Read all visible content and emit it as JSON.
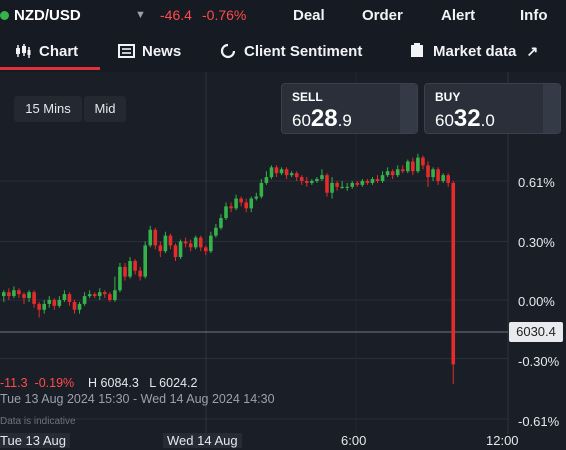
{
  "header": {
    "symbol": "NZD/USD",
    "change": "-46.4",
    "change_pct": "-0.76%",
    "nav": [
      "Deal",
      "Order",
      "Alert",
      "Info"
    ]
  },
  "tabs": [
    {
      "label": "Chart",
      "icon": "candlestick-icon",
      "active": true
    },
    {
      "label": "News",
      "icon": "news-icon"
    },
    {
      "label": "Client Sentiment",
      "icon": "sentiment-ring-icon"
    },
    {
      "label": "Market data",
      "icon": "external-link-icon"
    }
  ],
  "controls": {
    "interval": "15 Mins",
    "price_type": "Mid"
  },
  "sell": {
    "label": "SELL",
    "prefix": "60",
    "big": "28",
    "suffix": ".9"
  },
  "buy": {
    "label": "BUY",
    "prefix": "60",
    "big": "32",
    "suffix": ".0"
  },
  "current_price_label": "6030.4",
  "colors": {
    "up": "#36b24a",
    "down": "#e52b2b",
    "accent": "#e0313a"
  },
  "chart_data": {
    "type": "candlestick",
    "yaxis_ticks": [
      "0.61%",
      "0.30%",
      "0.00%",
      "-0.30%",
      "-0.61%"
    ],
    "xaxis_ticks": [
      "Tue 13 Aug",
      "Wed 14 Aug",
      "6:00",
      "12:00"
    ],
    "stats": {
      "change": "-11.3",
      "change_pct": "-0.19%",
      "high": "H 6084.3",
      "low": "L 6024.2"
    },
    "range_label": "Tue 13 Aug 2024 15:30 - Wed 14 Aug 2024 14:30",
    "note": "Data is indicative",
    "candles": [
      [
        0.02,
        0.04,
        -0.01,
        0.05
      ],
      [
        0.04,
        0.02,
        0.0,
        0.06
      ],
      [
        0.02,
        0.05,
        0.01,
        0.07
      ],
      [
        0.05,
        0.03,
        0.01,
        0.06
      ],
      [
        0.03,
        0.01,
        -0.02,
        0.04
      ],
      [
        0.01,
        0.04,
        -0.01,
        0.05
      ],
      [
        0.04,
        -0.02,
        -0.04,
        0.05
      ],
      [
        -0.02,
        -0.05,
        -0.09,
        -0.01
      ],
      [
        -0.05,
        -0.02,
        -0.07,
        0.0
      ],
      [
        -0.02,
        0.0,
        -0.04,
        0.02
      ],
      [
        0.0,
        -0.03,
        -0.05,
        0.01
      ],
      [
        -0.03,
        0.0,
        -0.04,
        0.02
      ],
      [
        0.0,
        0.03,
        -0.01,
        0.05
      ],
      [
        0.03,
        -0.01,
        -0.03,
        0.04
      ],
      [
        -0.01,
        -0.05,
        -0.07,
        0.0
      ],
      [
        -0.05,
        -0.02,
        -0.07,
        -0.01
      ],
      [
        -0.02,
        0.02,
        -0.03,
        0.04
      ],
      [
        0.02,
        0.03,
        0.01,
        0.05
      ],
      [
        0.03,
        0.02,
        0.01,
        0.04
      ],
      [
        0.02,
        0.04,
        0.0,
        0.06
      ],
      [
        0.04,
        0.03,
        0.01,
        0.05
      ],
      [
        0.03,
        0.0,
        -0.01,
        0.04
      ],
      [
        0.0,
        0.05,
        -0.01,
        0.12
      ],
      [
        0.05,
        0.17,
        0.04,
        0.19
      ],
      [
        0.17,
        0.12,
        0.1,
        0.19
      ],
      [
        0.12,
        0.2,
        0.11,
        0.22
      ],
      [
        0.2,
        0.15,
        0.13,
        0.21
      ],
      [
        0.15,
        0.12,
        0.1,
        0.17
      ],
      [
        0.12,
        0.28,
        0.11,
        0.3
      ],
      [
        0.28,
        0.36,
        0.27,
        0.38
      ],
      [
        0.36,
        0.28,
        0.26,
        0.37
      ],
      [
        0.28,
        0.25,
        0.22,
        0.3
      ],
      [
        0.25,
        0.33,
        0.24,
        0.35
      ],
      [
        0.33,
        0.28,
        0.26,
        0.34
      ],
      [
        0.28,
        0.22,
        0.2,
        0.29
      ],
      [
        0.22,
        0.3,
        0.21,
        0.31
      ],
      [
        0.3,
        0.29,
        0.27,
        0.32
      ],
      [
        0.29,
        0.27,
        0.25,
        0.31
      ],
      [
        0.27,
        0.32,
        0.26,
        0.33
      ],
      [
        0.32,
        0.27,
        0.25,
        0.33
      ],
      [
        0.27,
        0.25,
        0.23,
        0.28
      ],
      [
        0.25,
        0.33,
        0.24,
        0.35
      ],
      [
        0.33,
        0.37,
        0.32,
        0.39
      ],
      [
        0.37,
        0.42,
        0.36,
        0.44
      ],
      [
        0.42,
        0.48,
        0.41,
        0.5
      ],
      [
        0.48,
        0.47,
        0.45,
        0.5
      ],
      [
        0.47,
        0.52,
        0.46,
        0.54
      ],
      [
        0.52,
        0.5,
        0.48,
        0.53
      ],
      [
        0.5,
        0.47,
        0.45,
        0.52
      ],
      [
        0.47,
        0.52,
        0.45,
        0.53
      ],
      [
        0.52,
        0.53,
        0.51,
        0.55
      ],
      [
        0.53,
        0.6,
        0.52,
        0.62
      ],
      [
        0.6,
        0.63,
        0.59,
        0.66
      ],
      [
        0.63,
        0.68,
        0.62,
        0.69
      ],
      [
        0.68,
        0.65,
        0.63,
        0.69
      ],
      [
        0.65,
        0.67,
        0.64,
        0.68
      ],
      [
        0.67,
        0.64,
        0.62,
        0.68
      ],
      [
        0.64,
        0.65,
        0.63,
        0.66
      ],
      [
        0.65,
        0.63,
        0.61,
        0.66
      ],
      [
        0.63,
        0.61,
        0.59,
        0.64
      ],
      [
        0.61,
        0.6,
        0.58,
        0.63
      ],
      [
        0.6,
        0.61,
        0.59,
        0.62
      ],
      [
        0.61,
        0.62,
        0.6,
        0.63
      ],
      [
        0.62,
        0.64,
        0.61,
        0.67
      ],
      [
        0.64,
        0.55,
        0.53,
        0.65
      ],
      [
        0.55,
        0.6,
        0.52,
        0.63
      ],
      [
        0.6,
        0.58,
        0.56,
        0.61
      ],
      [
        0.58,
        0.58,
        0.57,
        0.61
      ],
      [
        0.58,
        0.58,
        0.56,
        0.6
      ],
      [
        0.58,
        0.6,
        0.57,
        0.61
      ],
      [
        0.6,
        0.59,
        0.58,
        0.61
      ],
      [
        0.59,
        0.61,
        0.58,
        0.62
      ],
      [
        0.61,
        0.6,
        0.59,
        0.62
      ],
      [
        0.6,
        0.62,
        0.59,
        0.63
      ],
      [
        0.62,
        0.61,
        0.6,
        0.64
      ],
      [
        0.61,
        0.64,
        0.6,
        0.66
      ],
      [
        0.64,
        0.66,
        0.63,
        0.68
      ],
      [
        0.66,
        0.64,
        0.62,
        0.67
      ],
      [
        0.64,
        0.67,
        0.63,
        0.69
      ],
      [
        0.67,
        0.66,
        0.65,
        0.69
      ],
      [
        0.66,
        0.71,
        0.65,
        0.72
      ],
      [
        0.71,
        0.66,
        0.64,
        0.73
      ],
      [
        0.66,
        0.73,
        0.65,
        0.75
      ],
      [
        0.73,
        0.69,
        0.67,
        0.74
      ],
      [
        0.69,
        0.63,
        0.58,
        0.71
      ],
      [
        0.63,
        0.67,
        0.61,
        0.68
      ],
      [
        0.67,
        0.61,
        0.59,
        0.68
      ],
      [
        0.61,
        0.64,
        0.6,
        0.65
      ],
      [
        0.64,
        0.6,
        0.58,
        0.65
      ],
      [
        0.6,
        -0.33,
        -0.43,
        0.61
      ]
    ]
  }
}
